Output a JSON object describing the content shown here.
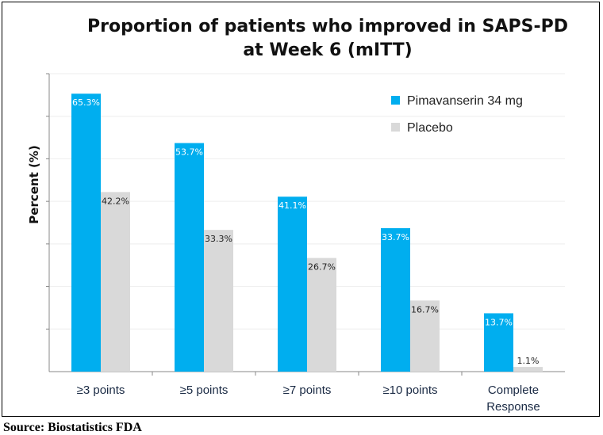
{
  "chart_data": {
    "type": "bar",
    "title": "Proportion of patients who improved in SAPS-PD\nat Week 6 (mITT)",
    "xlabel": "",
    "ylabel": "Percent (%)",
    "ylim": [
      0,
      70
    ],
    "grid": true,
    "legend_position": "top-right",
    "categories": [
      "≥3 points",
      "≥5 points",
      "≥7 points",
      "≥10 points",
      "Complete\nResponse"
    ],
    "series": [
      {
        "name": "Pimavanserin 34 mg",
        "color": "#00aeef",
        "values": [
          65.3,
          53.7,
          41.1,
          33.7,
          13.7
        ],
        "labels": [
          "65.3%",
          "53.7%",
          "41.1%",
          "33.7%",
          "13.7%"
        ]
      },
      {
        "name": "Placebo",
        "color": "#d9d9d9",
        "values": [
          42.2,
          33.3,
          26.7,
          16.7,
          1.1
        ],
        "labels": [
          "42.2%",
          "33.3%",
          "26.7%",
          "16.7%",
          "1.1%"
        ]
      }
    ]
  },
  "source": "Source: Biostatistics FDA"
}
